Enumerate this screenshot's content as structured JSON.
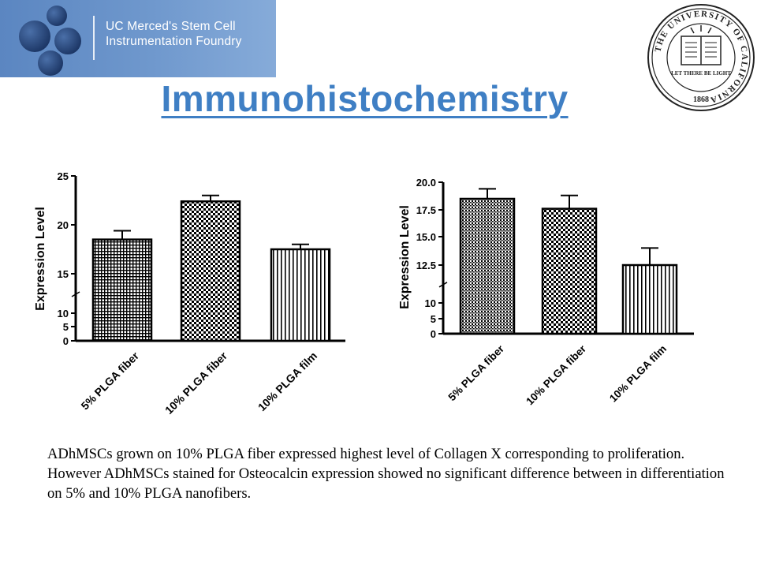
{
  "header": {
    "banner_line1": "UC Merced's Stem Cell",
    "banner_line2": "Instrumentation Foundry",
    "title": "Immunohistochemistry",
    "seal_text": "THE UNIVERSITY OF CALIFORNIA",
    "seal_motto": "LET THERE BE LIGHT",
    "seal_year": "1868"
  },
  "colors": {
    "title": "#3f7fc4",
    "banner": "#6f98cd"
  },
  "chart_data": [
    {
      "type": "bar",
      "categories": [
        "5% PLGA fiber",
        "10% PLGA fiber",
        "10% PLGA film"
      ],
      "values": [
        18.5,
        22.4,
        17.5
      ],
      "errors": [
        0.9,
        0.6,
        0.5
      ],
      "patterns": [
        "grid",
        "checker",
        "vlines"
      ],
      "ylabel": "Expression Level",
      "yticks": [
        "0",
        "5",
        "10",
        "15",
        "20",
        "25"
      ],
      "axis_break": true,
      "ylim": [
        0,
        25
      ]
    },
    {
      "type": "bar",
      "categories": [
        "5% PLGA fiber",
        "10% PLGA fiber",
        "10% PLGA film"
      ],
      "values": [
        18.5,
        17.6,
        12.5
      ],
      "errors": [
        0.9,
        1.2,
        1.5
      ],
      "patterns": [
        "dense",
        "checker",
        "vlines"
      ],
      "ylabel": "Expression Level",
      "yticks": [
        "0",
        "5",
        "10",
        "12.5",
        "15.0",
        "17.5",
        "20.0"
      ],
      "axis_break": true,
      "ylim": [
        0,
        20
      ]
    }
  ],
  "caption": "ADhMSCs grown on 10% PLGA fiber expressed highest level of Collagen X corresponding to proliferation.  However ADhMSCs stained for Osteocalcin expression showed no significant difference between in differentiation on 5% and 10% PLGA nanofibers."
}
